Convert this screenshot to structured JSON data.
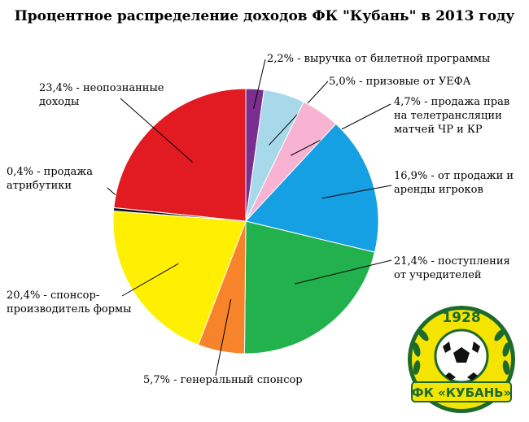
{
  "chart_data": {
    "type": "pie",
    "title": "Процентное распределение доходов ФК \"Кубань\" в 2013 году",
    "start": "12 o'clock",
    "direction": "clockwise",
    "slices": [
      {
        "value": 2.2,
        "label": "2,2% - выручка от билетной программы",
        "color": "#7a2f8e"
      },
      {
        "value": 5.0,
        "label": "5,0% - призовые от УЕФА",
        "color": "#a7d9ea"
      },
      {
        "value": 4.7,
        "label": "4,7% - продажа прав на телетрансляции матчей ЧР и КР",
        "color": "#f7b3d1"
      },
      {
        "value": 16.9,
        "label": "16,9% - от продажи и аренды игроков",
        "color": "#14a0e3"
      },
      {
        "value": 21.4,
        "label": "21,4% - поступления от учредителей",
        "color": "#22b14c"
      },
      {
        "value": 5.7,
        "label": "5,7% - генеральный спонсор",
        "color": "#f7832a"
      },
      {
        "value": 20.4,
        "label": "20,4% - спонсор-производитель формы",
        "color": "#ffef00"
      },
      {
        "value": 0.4,
        "label": "0,4% - продажа атрибутики",
        "color": "#111111"
      },
      {
        "value": 23.4,
        "label": "23,4% - неопознанные доходы",
        "color": "#e21b23"
      }
    ]
  },
  "logo": {
    "year": "1928",
    "name": "ФК «КУБАНЬ»",
    "colors": {
      "ring": "#f4e400",
      "outline": "#1d6b2c",
      "band": "#1d6b2c"
    }
  }
}
